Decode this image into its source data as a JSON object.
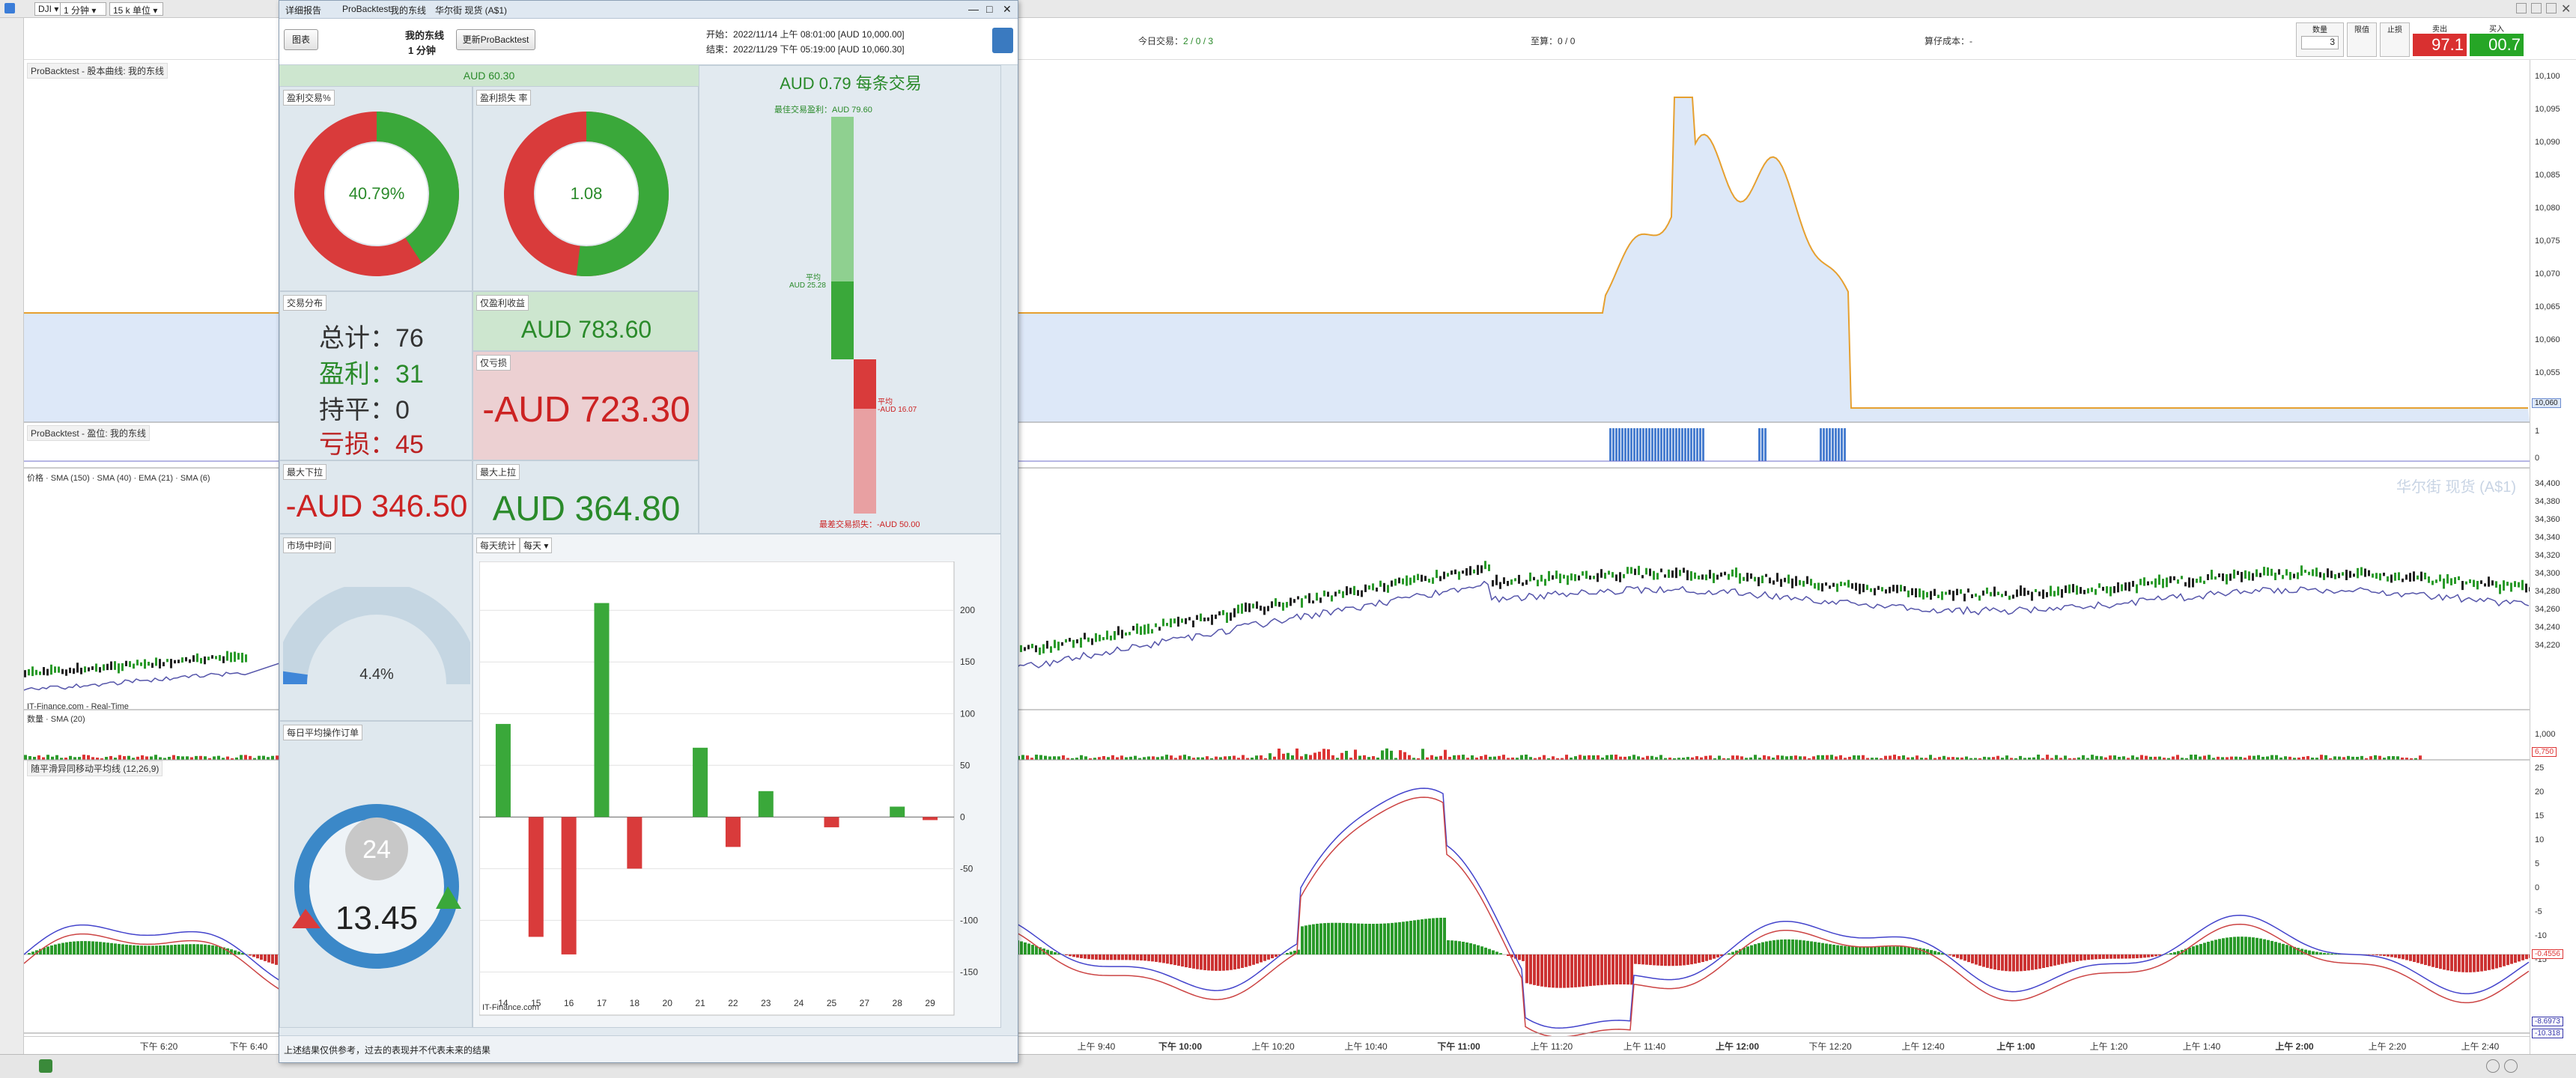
{
  "topbar": {
    "instrument": "DJI",
    "timeframe": "1 分钟",
    "units": "15 k 单位"
  },
  "report_window": {
    "title_tabs": [
      "详细报告",
      "ProBacktest",
      "我的东线",
      "华尔街 现货 (A$1)"
    ],
    "chart_button": "图表",
    "system_name": "我的东线",
    "system_timeframe": "1 分钟",
    "update_button": "更新ProBacktest",
    "start_label": "开始：",
    "start_value": "2022/11/14 上午 08:01:00 [AUD 10,000.00]",
    "end_label": "结束：",
    "end_value": "2022/11/29 下午 05:19:00 [AUD 10,060.30]",
    "gain_banner": "AUD 60.30",
    "win_rate_title": "盈利交易%",
    "win_rate_value": "40.79%",
    "win_rate": 0.4079,
    "gain_loss_title": "盈利损失 率",
    "gain_loss_value": "1.08",
    "gain_loss_ratio": 0.519,
    "trades_title": "交易分布",
    "total_label": "总计：",
    "total_value": "76",
    "wins_label": "盈利：",
    "wins_value": "31",
    "even_label": "持平：",
    "even_value": "0",
    "losses_label": "亏损：",
    "losses_value": "45",
    "gains_title": "仅盈利收益",
    "gains_value": "AUD 783.60",
    "losses_title": "仅亏损",
    "losses_amount": "-AUD 723.30",
    "max_dd_title": "最大下拉",
    "max_dd_value": "-AUD 346.50",
    "max_ru_title": "最大上拉",
    "max_ru_value": "AUD 364.80",
    "per_trade_headline": "AUD 0.79 每条交易",
    "best_trade_label": "最佳交易盈利：",
    "best_trade_value": "AUD 79.60",
    "avg_win_label": "平均",
    "avg_win_value": "AUD 25.28",
    "avg_loss_label": "平均",
    "avg_loss_value": "-AUD 16.07",
    "worst_trade_label": "最差交易损失：",
    "worst_trade_value": "-AUD 50.00",
    "time_in_market_title": "市场中时间",
    "time_in_market_value": "4.4%",
    "time_in_market": 0.044,
    "avg_orders_title": "每日平均操作订单",
    "avg_orders_value": "13.45",
    "avg_orders_clock": "24",
    "daily_title": "每天统计",
    "daily_period": "每天",
    "credit": "IT-Finance.com",
    "footer_note": "上述结果仅供参考，过去的表现并不代表未来的结果"
  },
  "daily_chart": {
    "chart_data": {
      "type": "bar",
      "categories": [
        "14",
        "15",
        "16",
        "17",
        "18",
        "20",
        "21",
        "22",
        "23",
        "24",
        "25",
        "27",
        "28",
        "29"
      ],
      "values": [
        90,
        -116,
        -133,
        207,
        -50,
        0,
        67,
        -29,
        25,
        0,
        -10,
        0,
        10,
        -3
      ],
      "ylim": [
        -170,
        240
      ],
      "yticks": [
        200,
        150,
        100,
        50,
        0,
        -50,
        -100,
        -150
      ],
      "positive_color": "#3aa83a",
      "negative_color": "#d93b3b"
    }
  },
  "main_chart": {
    "header_today": "今日交易：",
    "header_today_value": "2 / 0 / 3",
    "header_position": "至算：",
    "header_position_value": "0 / 0",
    "header_cost": "算仔成本：",
    "header_cost_value": "-",
    "qty_label": "数量",
    "qty_value": "3",
    "stop_label": "限值",
    "limit_label": "止损",
    "sell_label": "卖出",
    "sell_price": "97.1",
    "buy_label": "买入",
    "buy_price": "00.7",
    "pane1_title": "ProBacktest - 股本曲线: 我的东线",
    "pane2_title": "ProBacktest - 盈位: 我的东线",
    "pane3_legend": [
      "价格",
      "SMA (150)",
      "SMA (40)",
      "EMA (21)",
      "SMA (6)"
    ],
    "pane4_legend": [
      "数量",
      "SMA (20)"
    ],
    "pane5_legend": "随平滑异同移动平均线 (12,26,9)",
    "watermark": "华尔街 现货 (A$1)",
    "feed": "IT-Finance.com - Real-Time",
    "equity_axis": [
      "10,100",
      "10,095",
      "10,090",
      "10,085",
      "10,080",
      "10,075",
      "10,070",
      "10,065",
      "10,060",
      "10,055"
    ],
    "equity_tag": "10,060",
    "pos_axis": [
      "1",
      "0"
    ],
    "price_axis": [
      "34,400",
      "34,380",
      "34,360",
      "34,340",
      "34,320",
      "34,300",
      "34,280",
      "34,260",
      "34,240",
      "34,220"
    ],
    "vol_axis": [
      "1,000"
    ],
    "vol_tag": "6,750",
    "macd_axis": [
      "25",
      "20",
      "15",
      "10",
      "5",
      "0",
      "-5",
      "-10",
      "-15"
    ],
    "macd_tag": "-0.4556",
    "macd_tag2": "-8.6973",
    "macd_tag3": "-10.318",
    "time_labels": [
      {
        "t": "下午 6:20",
        "bold": false
      },
      {
        "t": "下午 6:40",
        "bold": false
      },
      {
        "t": "上午 9:40",
        "bold": false
      },
      {
        "t": "下午 10:00",
        "bold": true
      },
      {
        "t": "上午 10:20",
        "bold": false
      },
      {
        "t": "上午 10:40",
        "bold": false
      },
      {
        "t": "下午 11:00",
        "bold": true
      },
      {
        "t": "上午 11:20",
        "bold": false
      },
      {
        "t": "上午 11:40",
        "bold": false
      },
      {
        "t": "上午 12:00",
        "bold": true
      },
      {
        "t": "下午 12:20",
        "bold": false
      },
      {
        "t": "上午 12:40",
        "bold": false
      },
      {
        "t": "上午 1:00",
        "bold": true
      },
      {
        "t": "上午 1:20",
        "bold": false
      },
      {
        "t": "上午 1:40",
        "bold": false
      },
      {
        "t": "上午 2:00",
        "bold": true
      },
      {
        "t": "上午 2:20",
        "bold": false
      },
      {
        "t": "上午 2:40",
        "bold": false
      }
    ]
  }
}
